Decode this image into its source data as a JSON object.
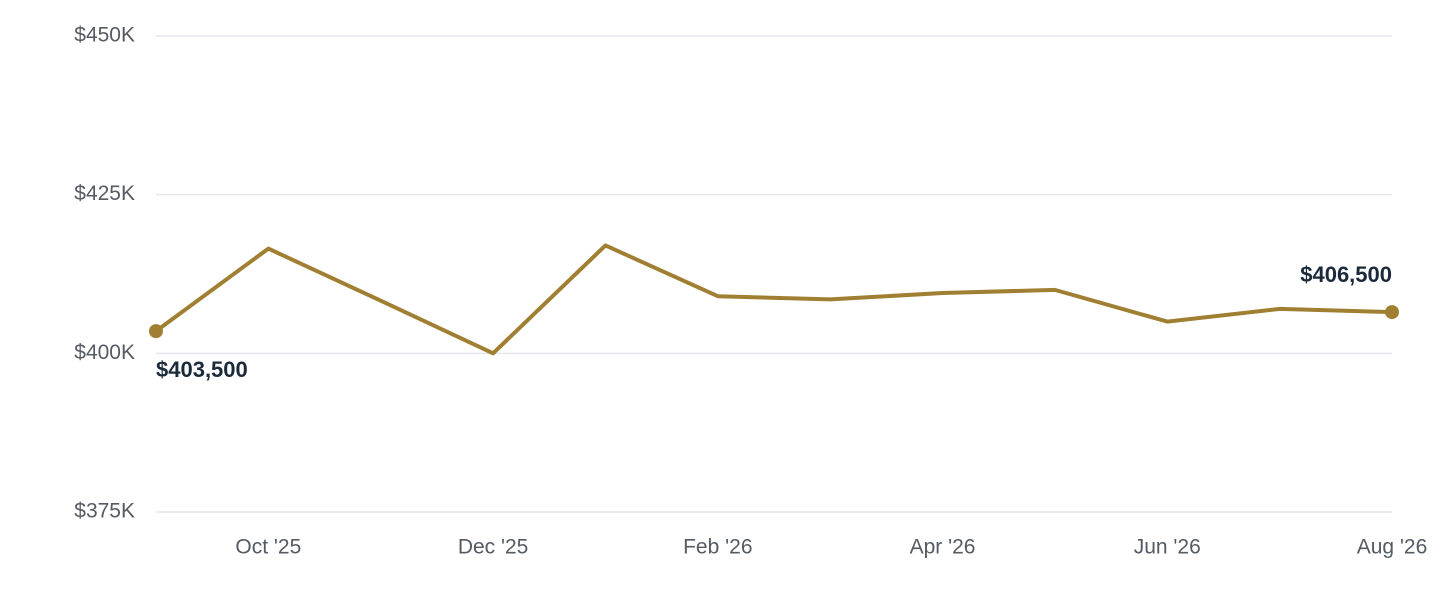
{
  "chart_data": {
    "type": "line",
    "categories": [
      null,
      "Oct '25",
      null,
      "Dec '25",
      null,
      "Feb '26",
      null,
      "Apr '26",
      null,
      "Jun '26",
      null,
      "Aug '26"
    ],
    "values": [
      403500,
      416500,
      408300,
      400000,
      417000,
      409000,
      408500,
      409500,
      410000,
      405000,
      407000,
      406500
    ],
    "value_labels": [
      "$403,500",
      null,
      null,
      null,
      null,
      null,
      null,
      null,
      null,
      null,
      null,
      "$406,500"
    ],
    "color": "#a07f32",
    "ylim": [
      375000,
      450000
    ],
    "yticks": [
      {
        "value": 375000,
        "label": "$375K"
      },
      {
        "value": 400000,
        "label": "$400K"
      },
      {
        "value": 425000,
        "label": "$425K"
      },
      {
        "value": 450000,
        "label": "$450K"
      }
    ],
    "grid": true
  }
}
